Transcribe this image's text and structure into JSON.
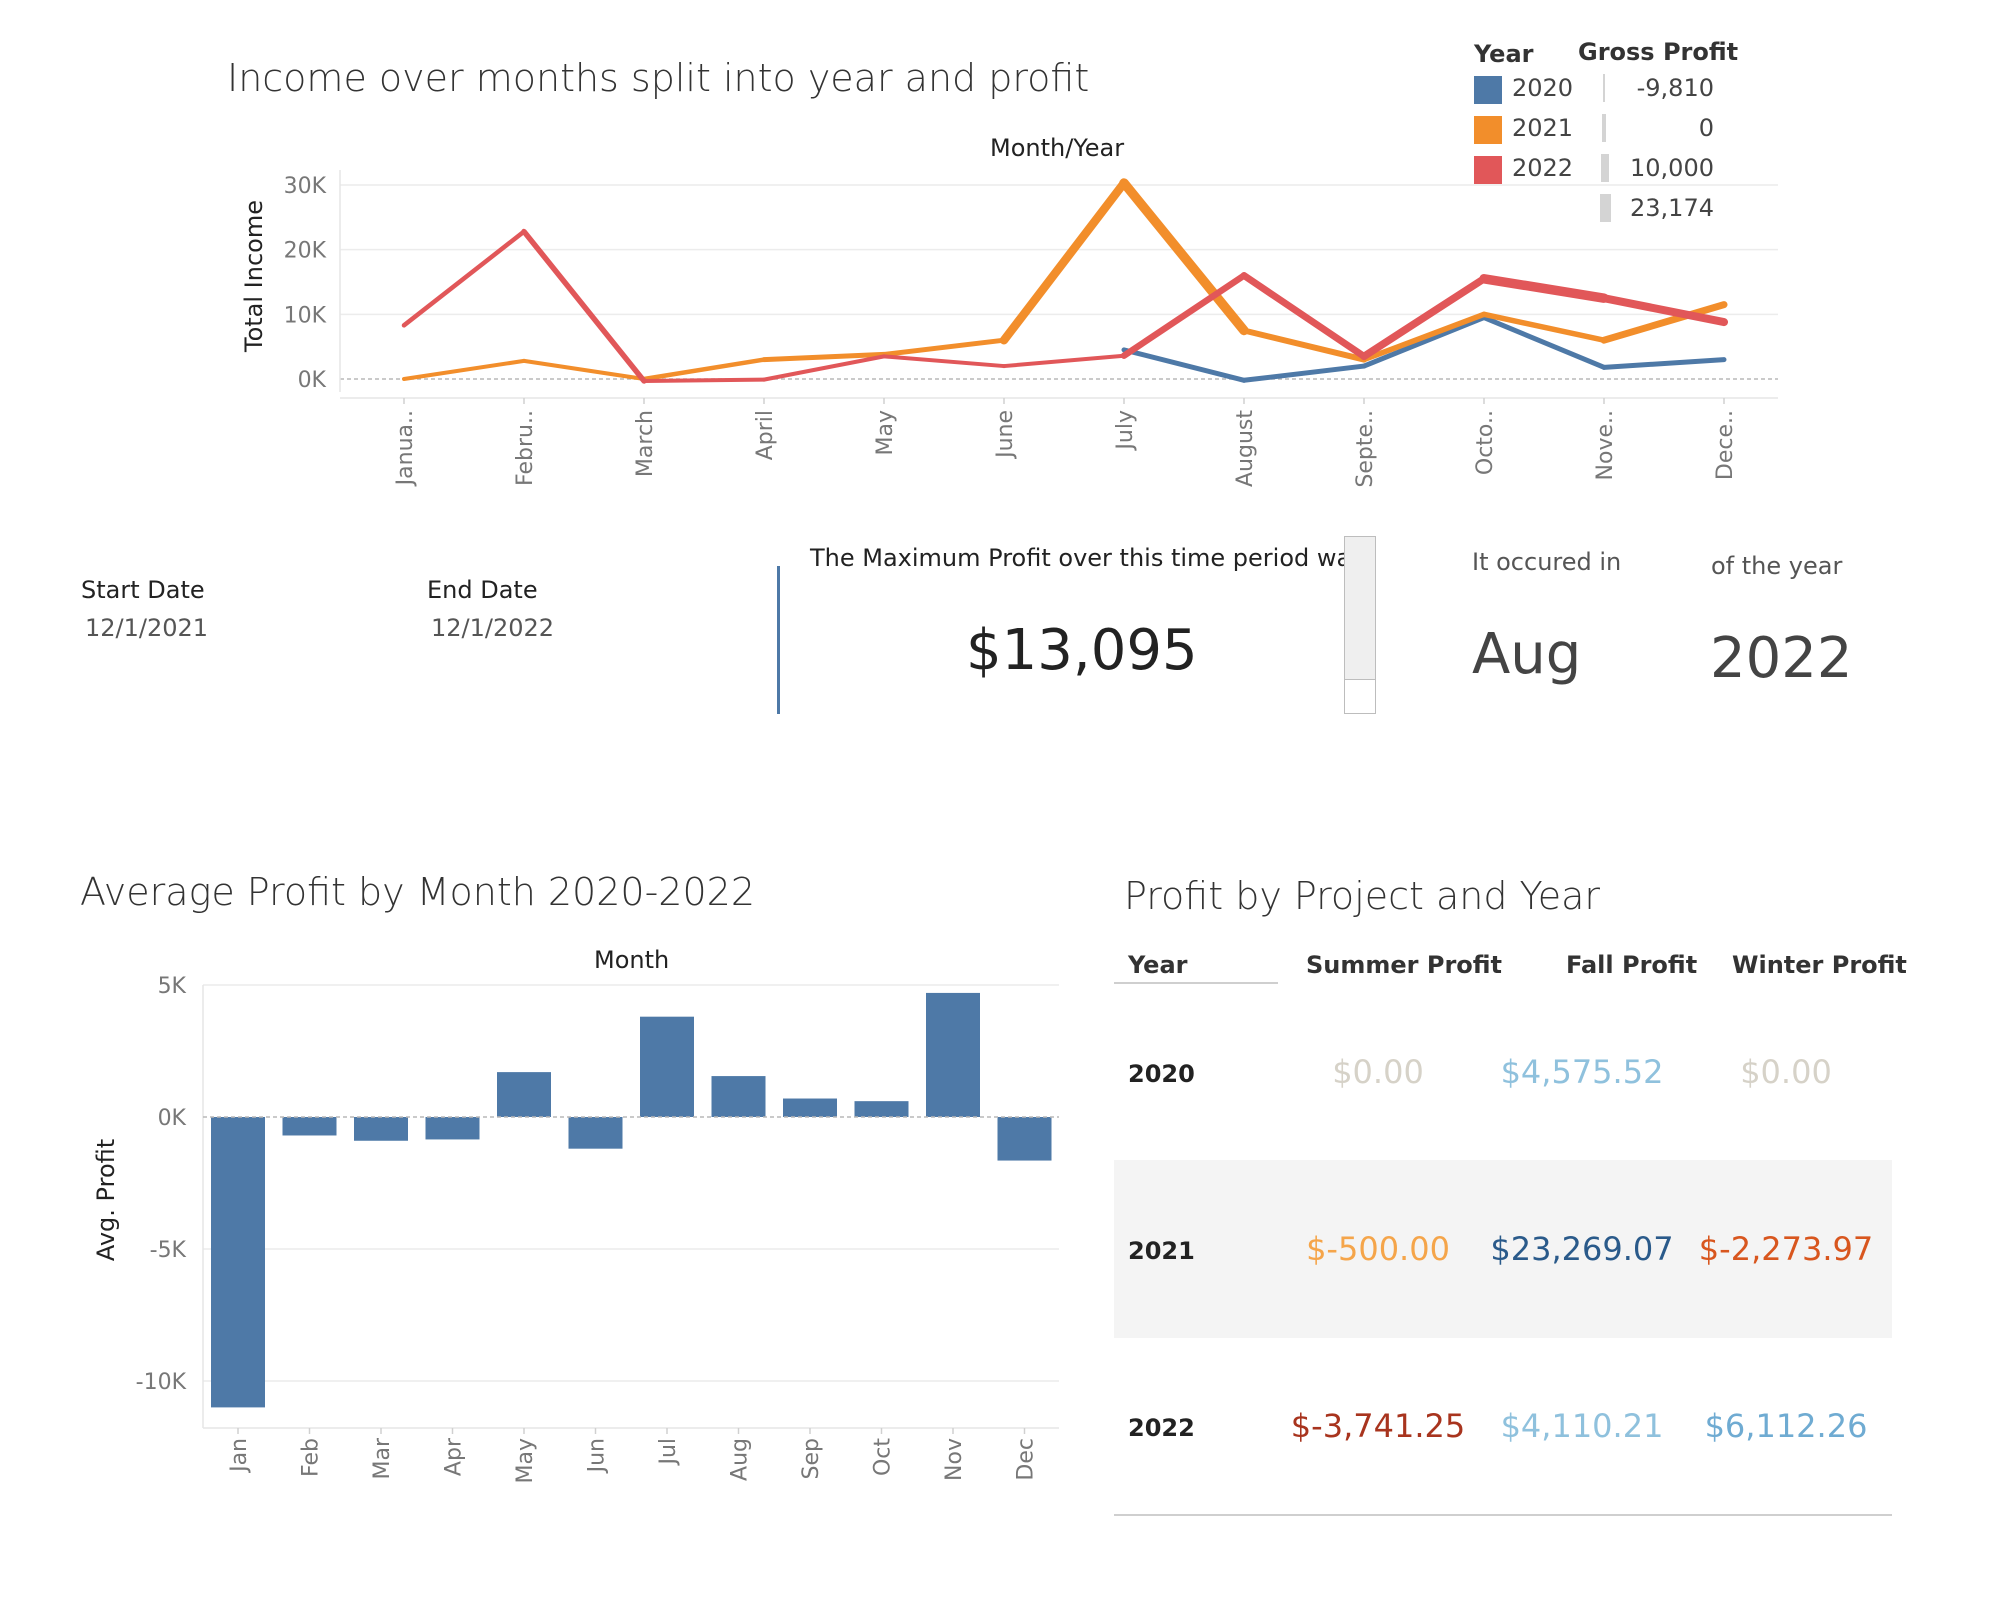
{
  "line_chart": {
    "title": "Income over months split into year and profit",
    "column_header": "Month/Year",
    "ylabel": "Total Income",
    "legend_year_title": "Year",
    "legend_profit_title": "Gross Profit",
    "profit_legend_values": [
      "-9,810",
      "0",
      "10,000",
      "23,174"
    ]
  },
  "filters": {
    "start_label": "Start Date",
    "start_value": "12/1/2021",
    "end_label": "End Date",
    "end_value": "12/1/2022"
  },
  "kpi": {
    "max_profit_label": "The Maximum Profit over this time period was",
    "max_profit_value": "$13,095",
    "occurred_label": "It occured in",
    "occurred_month": "Aug",
    "year_label": "of the year",
    "year_value": "2022"
  },
  "bar_chart": {
    "title": "Average Profit by Month 2020-2022",
    "column_header": "Month",
    "ylabel": "Avg. Profit"
  },
  "table": {
    "title": "Profit by Project and Year",
    "headers": [
      "Year",
      "Summer Profit",
      "Fall Profit",
      "Winter Profit"
    ],
    "rows": [
      {
        "year": "2020",
        "summer": "$0.00",
        "fall": "$4,575.52",
        "winter": "$0.00",
        "summer_color": "#d6d2c8",
        "fall_color": "#8fc1dd",
        "winter_color": "#d6d2c8"
      },
      {
        "year": "2021",
        "summer": "$-500.00",
        "fall": "$23,269.07",
        "winter": "$-2,273.97",
        "summer_color": "#f5a54a",
        "fall_color": "#2a5a8a",
        "winter_color": "#d8561e"
      },
      {
        "year": "2022",
        "summer": "$-3,741.25",
        "fall": "$4,110.21",
        "winter": "$6,112.26",
        "summer_color": "#a8341e",
        "fall_color": "#8fc1dd",
        "winter_color": "#6fabd2"
      }
    ]
  },
  "chart_data": [
    {
      "type": "line",
      "title": "Income over months split into year and profit",
      "xlabel": "Month/Year",
      "ylabel": "Total Income",
      "categories": [
        "Janua..",
        "Febru..",
        "March",
        "April",
        "May",
        "June",
        "July",
        "August",
        "Septe..",
        "Octo..",
        "Nove..",
        "Dece.."
      ],
      "yticks": [
        "0K",
        "10K",
        "20K",
        "30K"
      ],
      "ylim": [
        0,
        32000
      ],
      "series": [
        {
          "name": "2020",
          "color": "#4e79a7",
          "values": [
            null,
            null,
            null,
            null,
            null,
            null,
            4500,
            -200,
            2000,
            9500,
            1800,
            3000
          ],
          "widths": [
            null,
            null,
            null,
            null,
            null,
            null,
            5,
            5,
            5,
            5,
            5,
            5
          ]
        },
        {
          "name": "2021",
          "color": "#f28e2b",
          "values": [
            0,
            2800,
            0,
            3000,
            3800,
            6000,
            30300,
            7500,
            3000,
            10000,
            6000,
            11500
          ],
          "widths": [
            4,
            4,
            4,
            5,
            5,
            5,
            12,
            7,
            5,
            6,
            5,
            9
          ]
        },
        {
          "name": "2022",
          "color": "#e15759",
          "values": [
            8300,
            22800,
            -300,
            -100,
            3500,
            2000,
            3600,
            16000,
            3500,
            15500,
            12500,
            8800
          ],
          "widths": [
            2,
            7,
            4,
            4,
            4,
            4,
            4,
            9,
            5,
            10,
            9,
            7
          ]
        }
      ]
    },
    {
      "type": "bar",
      "title": "Average Profit by Month 2020-2022",
      "xlabel": "Month",
      "ylabel": "Avg. Profit",
      "categories": [
        "Jan",
        "Feb",
        "Mar",
        "Apr",
        "May",
        "Jun",
        "Jul",
        "Aug",
        "Sep",
        "Oct",
        "Nov",
        "Dec"
      ],
      "values": [
        -11000,
        -700,
        -900,
        -850,
        1700,
        -1200,
        3800,
        1550,
        700,
        600,
        4700,
        -1650
      ],
      "yticks": [
        "5K",
        "0K",
        "-5K",
        "-10K"
      ],
      "ylim": [
        -11000,
        5000
      ],
      "color": "#4e79a7"
    }
  ]
}
